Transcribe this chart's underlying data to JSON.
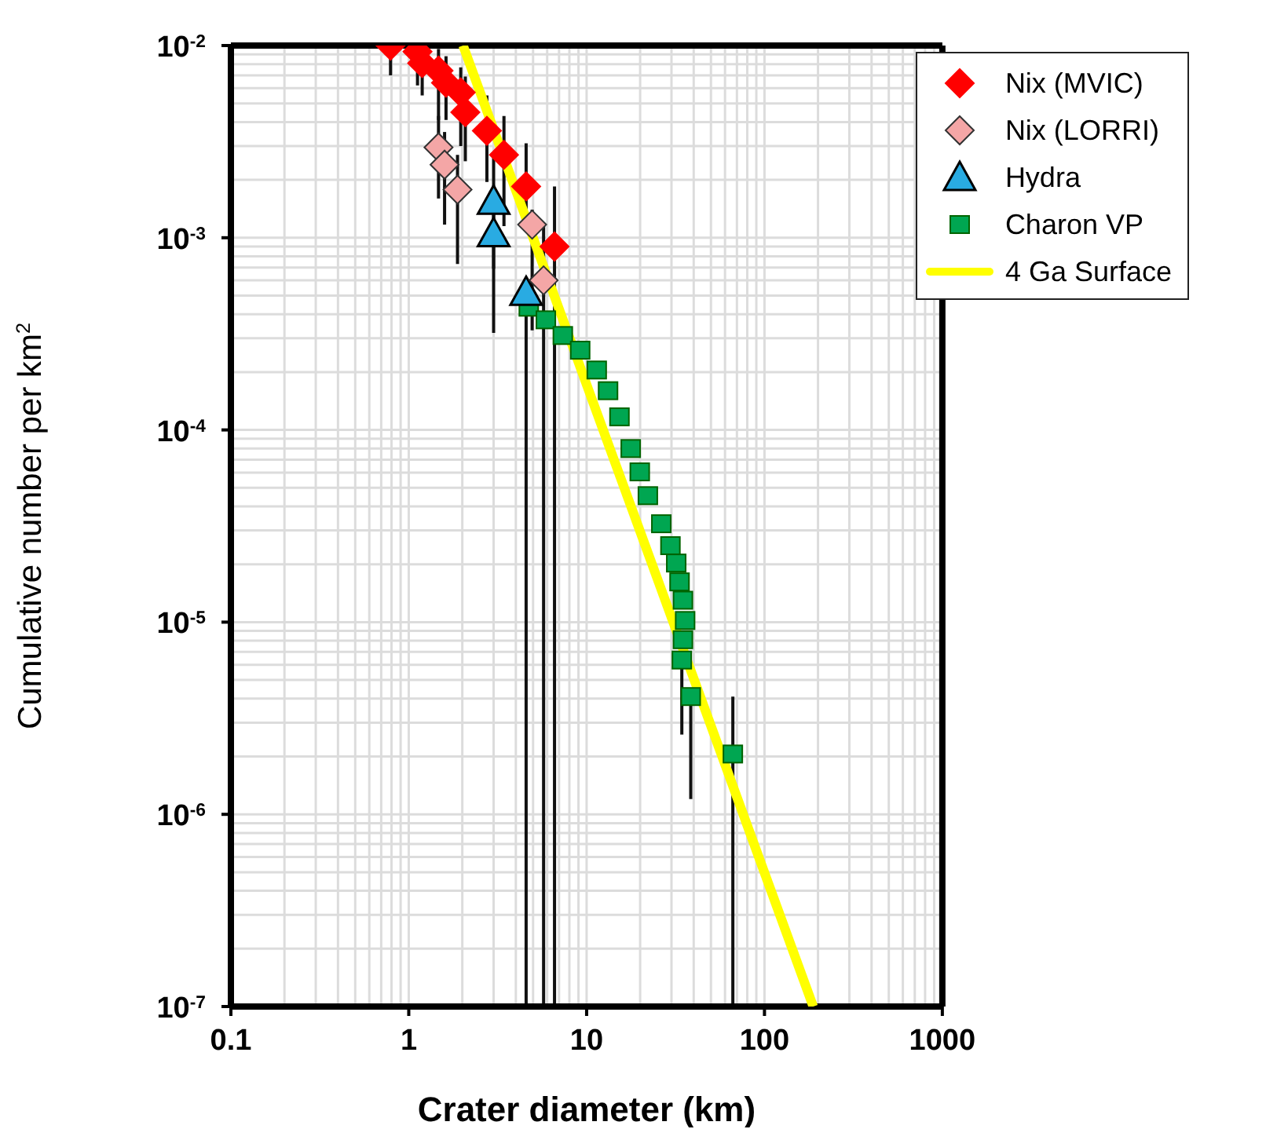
{
  "chart_data": {
    "type": "scatter",
    "xlabel": "Crater diameter (km)",
    "ylabel": "Cumulative number per km$^{2}$",
    "log": "xy",
    "grid": true,
    "legend": "top right",
    "xlim": [
      0.1,
      1000
    ],
    "xticks": [
      0.1,
      1,
      10,
      100,
      1000
    ],
    "ylim": [
      1e-07,
      0.01
    ],
    "yticks": [
      {
        "value": 1e-07,
        "label": "10$^{-7}$"
      },
      {
        "value": 1e-06,
        "label": "10$^{-6}$"
      },
      {
        "value": 1e-05,
        "label": "10$^{-5}$"
      },
      {
        "value": 0.0001,
        "label": "10$^{-4}$"
      },
      {
        "value": 0.001,
        "label": "10$^{-3}$"
      },
      {
        "value": 0.01,
        "label": "10$^{-2}$"
      }
    ],
    "series": [
      {
        "name": "Nix (MVIC)",
        "marker": "diamond",
        "color": "#ff0000",
        "x": [
          0.79,
          1.12,
          1.19,
          1.47,
          1.62,
          1.96,
          2.08,
          2.75,
          3.43,
          4.57,
          6.6
        ],
        "values": [
          0.01,
          0.0093,
          0.0081,
          0.0074,
          0.0064,
          0.0057,
          0.0045,
          0.0036,
          0.0027,
          0.00185,
          0.0009
        ],
        "errors": [
          [
            0.007,
            0.01
          ],
          [
            0.0062,
            0.01
          ],
          [
            0.0055,
            0.0081
          ],
          [
            0.0041,
            0.0096
          ],
          [
            0.0041,
            0.0088
          ],
          [
            0.003,
            0.0077
          ],
          [
            0.0025,
            0.0069
          ],
          [
            0.00195,
            0.0055
          ],
          [
            0.00115,
            0.0043
          ],
          [
            0.0012,
            0.0031
          ],
          [
            1e-07,
            0.00185
          ]
        ]
      },
      {
        "name": "Nix (LORRI)",
        "marker": "diamond",
        "color": "#f4a6a6",
        "x": [
          1.47,
          1.59,
          1.88,
          4.94,
          5.73
        ],
        "values": [
          0.00295,
          0.0024,
          0.00178,
          0.00117,
          0.0006
        ],
        "errors": [
          [
            0.0016,
            0.0043
          ],
          [
            0.00117,
            0.00355
          ],
          [
            0.00073,
            0.0027
          ],
          [
            0.00033,
            0.0014
          ],
          [
            1e-07,
            0.00117
          ]
        ]
      },
      {
        "name": "Hydra",
        "marker": "triangle",
        "color": "#29abe2",
        "x": [
          3.0,
          3.0,
          4.57
        ],
        "values": [
          0.00155,
          0.00105,
          0.00052
        ],
        "errors": [
          [
            0.00069,
            0.0026
          ],
          [
            0.00032,
            0.0016
          ],
          [
            1e-07,
            0.00052
          ]
        ]
      },
      {
        "name": "Charon VP",
        "marker": "square",
        "color": "#00a651",
        "x": [
          4.73,
          5.9,
          7.35,
          9.2,
          11.4,
          13.2,
          15.3,
          17.7,
          19.9,
          22.1,
          26.3,
          29.6,
          31.9,
          33.3,
          34.8,
          35.8,
          34.8,
          34.3,
          38.5,
          66.4
        ],
        "values": [
          0.000435,
          0.000374,
          0.00031,
          0.00026,
          0.000205,
          0.00016,
          0.000117,
          8e-05,
          6.05e-05,
          4.55e-05,
          3.25e-05,
          2.5e-05,
          2.03e-05,
          1.62e-05,
          1.3e-05,
          1.02e-05,
          8.1e-06,
          6.35e-06,
          4.1e-06,
          2.06e-06
        ],
        "errors": [
          null,
          null,
          null,
          null,
          null,
          null,
          null,
          null,
          null,
          null,
          null,
          null,
          null,
          null,
          null,
          null,
          null,
          [
            2.6e-06,
            6.35e-06
          ],
          [
            1.2e-06,
            4.1e-06
          ],
          [
            1e-07,
            4.1e-06
          ]
        ]
      },
      {
        "name": "4 Ga Surface",
        "type": "line",
        "marker": "none",
        "color": "#ffff00",
        "x": [
          2.02,
          188
        ],
        "values": [
          0.01,
          1e-07
        ]
      }
    ]
  }
}
